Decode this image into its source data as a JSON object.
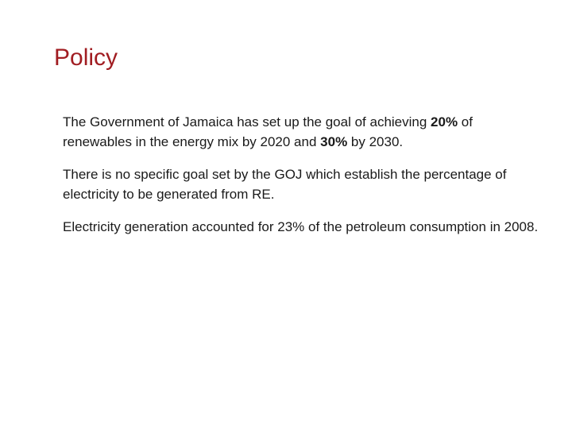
{
  "slide": {
    "title": "Policy",
    "paragraphs": [
      {
        "before_1": "The Government of Jamaica has set up the goal of achieving ",
        "bold_1": "20%",
        "between": " of renewables in the energy mix by 2020 and ",
        "bold_2": "30%",
        "after": " by 2030."
      },
      {
        "text": "There is no specific goal set by the GOJ which establish the percentage of electricity to be generated from RE."
      },
      {
        "text": "Electricity generation accounted for 23% of the petroleum consumption in 2008."
      }
    ]
  }
}
